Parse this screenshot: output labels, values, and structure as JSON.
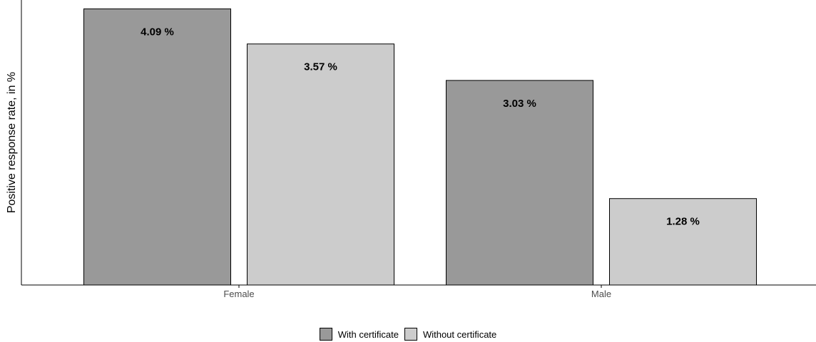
{
  "chart_data": {
    "type": "bar",
    "ylabel": "Positive response rate, in %",
    "xlabel": "",
    "categories": [
      "Female",
      "Male"
    ],
    "series": [
      {
        "name": "With certificate",
        "values": [
          4.09,
          3.03
        ],
        "labels": [
          "4.09 %",
          "3.03 %"
        ],
        "color": "#999999"
      },
      {
        "name": "Without certificate",
        "values": [
          3.57,
          1.28
        ],
        "labels": [
          "3.57 %",
          "1.28 %"
        ],
        "color": "#cccccc"
      }
    ],
    "ylim": [
      0,
      4.2
    ],
    "grid": false,
    "y_ticks_shown": false,
    "legend_position": "bottom"
  }
}
